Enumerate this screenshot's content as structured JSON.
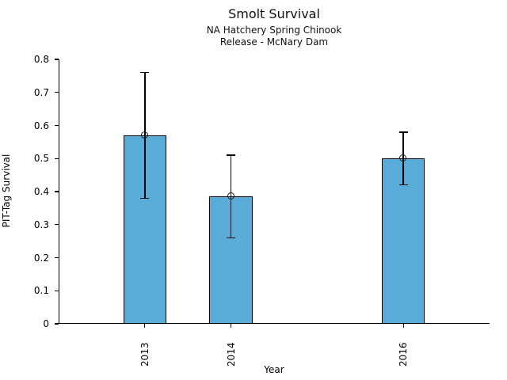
{
  "chart_data": {
    "type": "bar",
    "title": "Smolt Survival",
    "subtitle_line1": "NA Hatchery Spring Chinook",
    "subtitle_line2": "Release - McNary Dam",
    "xlabel": "Year",
    "ylabel": "PIT-Tag Survival",
    "categories": [
      "2013",
      "2014",
      "2016"
    ],
    "x_numeric": [
      2013,
      2014,
      2016
    ],
    "values": [
      0.57,
      0.385,
      0.5
    ],
    "error_low": [
      0.38,
      0.26,
      0.42
    ],
    "error_high": [
      0.76,
      0.51,
      0.58
    ],
    "ylim": [
      0,
      0.8
    ],
    "xlim": [
      2012,
      2017
    ],
    "yticks": [
      0,
      0.1,
      0.2,
      0.3,
      0.4,
      0.5,
      0.6,
      0.7,
      0.8
    ],
    "ytick_labels": [
      "0",
      "0.1",
      "0.2",
      "0.3",
      "0.4",
      "0.5",
      "0.6",
      "0.7",
      "0.8"
    ],
    "bar_width_years": 0.5,
    "grid": false,
    "legend": null,
    "bar_fill": "#5AACD8",
    "bar_edge": "#000000",
    "error_color": "#000000"
  }
}
